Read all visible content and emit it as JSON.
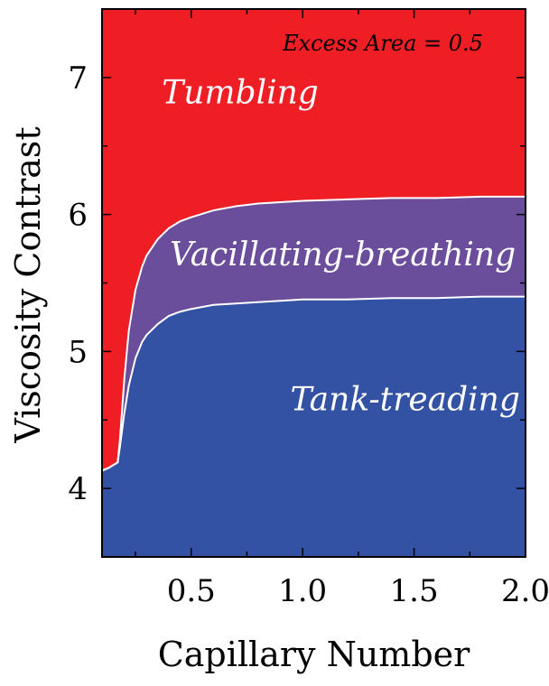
{
  "chart_data": {
    "type": "area",
    "title": "",
    "xlabel": "Capillary Number",
    "ylabel": "Viscosity Contrast",
    "xlim": [
      0.1,
      2.0
    ],
    "ylim": [
      3.5,
      7.5
    ],
    "xticks": [
      0.5,
      1.0,
      1.5,
      2.0
    ],
    "xtick_labels": [
      "0.5",
      "1.0",
      "1.5",
      "2.0"
    ],
    "yticks": [
      4,
      5,
      6,
      7
    ],
    "ytick_labels": [
      "4",
      "5",
      "6",
      "7"
    ],
    "grid": false,
    "annotation": "Excess Area = 0.5",
    "regions": [
      {
        "label": "Tumbling",
        "color": "#ee1e24",
        "label_pos": [
          0.72,
          6.81
        ]
      },
      {
        "label": "Vacillating-breathing",
        "color": "#6a4e9c",
        "label_pos": [
          1.18,
          5.63
        ]
      },
      {
        "label": "Tank-treading",
        "color": "#3352a3",
        "label_pos": [
          1.46,
          4.57
        ]
      }
    ],
    "boundaries": {
      "x": [
        0.1,
        0.13,
        0.15,
        0.17,
        0.18,
        0.2,
        0.22,
        0.25,
        0.28,
        0.3,
        0.35,
        0.4,
        0.45,
        0.5,
        0.6,
        0.7,
        0.8,
        0.9,
        1.0,
        1.2,
        1.4,
        1.6,
        1.8,
        2.0
      ],
      "upper": [
        4.13,
        4.15,
        4.17,
        4.19,
        4.35,
        4.8,
        5.15,
        5.45,
        5.62,
        5.7,
        5.82,
        5.9,
        5.95,
        5.98,
        6.03,
        6.06,
        6.08,
        6.09,
        6.1,
        6.11,
        6.12,
        6.12,
        6.13,
        6.13
      ],
      "lower": [
        4.13,
        4.15,
        4.17,
        4.19,
        4.3,
        4.55,
        4.75,
        4.95,
        5.07,
        5.12,
        5.2,
        5.26,
        5.29,
        5.31,
        5.34,
        5.35,
        5.36,
        5.37,
        5.38,
        5.38,
        5.39,
        5.39,
        5.4,
        5.4
      ]
    },
    "boundary_color": "#ffffff"
  }
}
